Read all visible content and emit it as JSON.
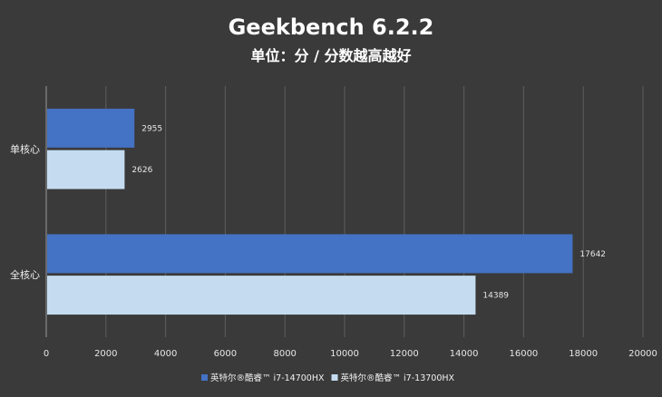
{
  "chart_data": {
    "type": "bar",
    "orientation": "horizontal",
    "title": "Geekbench 6.2.2",
    "subtitle": "单位：分 / 分数越高越好",
    "categories": [
      "单核心",
      "全核心"
    ],
    "series": [
      {
        "name": "英特尔®酷睿™ i7-14700HX",
        "color": "#4472c4",
        "values": [
          2955,
          17642
        ]
      },
      {
        "name": "英特尔®酷睿™ i7-13700HX",
        "color": "#c5dcf0",
        "values": [
          2626,
          14389
        ]
      }
    ],
    "xlim": [
      0,
      20000
    ],
    "xticks": [
      0,
      2000,
      4000,
      6000,
      8000,
      10000,
      12000,
      14000,
      16000,
      18000,
      20000
    ],
    "grid": true,
    "legend_position": "bottom"
  },
  "colors": {
    "background": "#3a3a3a",
    "gridline": "#5e5e5e",
    "axis": "#9a9a9a"
  }
}
